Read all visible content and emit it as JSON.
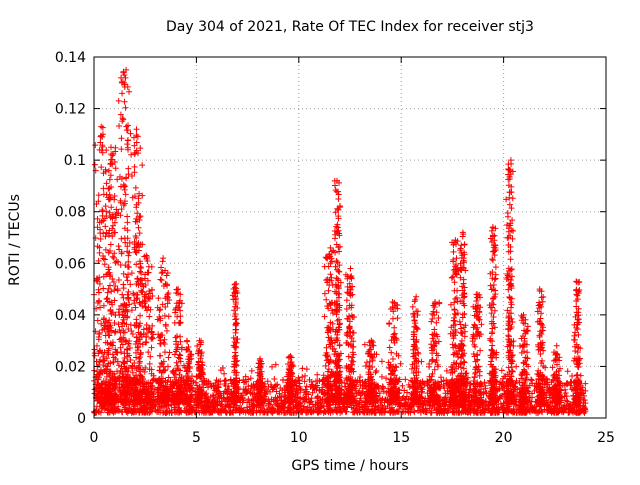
{
  "chart_data": {
    "type": "scatter",
    "title": "Day 304 of 2021, Rate Of TEC Index for receiver stj3",
    "xlabel": "GPS time / hours",
    "ylabel": "ROTI / TECUs",
    "xlim": [
      0,
      25
    ],
    "ylim": [
      0,
      0.14
    ],
    "x_ticks": [
      0,
      5,
      10,
      15,
      20,
      25
    ],
    "x_tick_labels": [
      "0",
      "5",
      "10",
      "15",
      "20",
      "25"
    ],
    "y_ticks": [
      0,
      0.02,
      0.04,
      0.06,
      0.08,
      0.1,
      0.12,
      0.14
    ],
    "y_tick_labels": [
      "0",
      "0.02",
      "0.04",
      "0.06",
      "0.08",
      "0.1",
      "0.12",
      "0.14"
    ],
    "grid": true,
    "marker": "+",
    "series_color": "#ff0000",
    "x_span_hours": [
      0,
      24
    ],
    "baseline_band": [
      0.002,
      0.015
    ],
    "activity_clusters": [
      {
        "center": 0.4,
        "width": 0.5,
        "peak": 0.113
      },
      {
        "center": 0.9,
        "width": 0.4,
        "peak": 0.105
      },
      {
        "center": 1.5,
        "width": 0.35,
        "peak": 0.135
      },
      {
        "center": 2.1,
        "width": 0.3,
        "peak": 0.112
      },
      {
        "center": 2.6,
        "width": 0.4,
        "peak": 0.063
      },
      {
        "center": 3.4,
        "width": 0.35,
        "peak": 0.062
      },
      {
        "center": 4.1,
        "width": 0.3,
        "peak": 0.05
      },
      {
        "center": 4.6,
        "width": 0.25,
        "peak": 0.03
      },
      {
        "center": 5.2,
        "width": 0.2,
        "peak": 0.03
      },
      {
        "center": 6.9,
        "width": 0.12,
        "peak": 0.052
      },
      {
        "center": 8.1,
        "width": 0.15,
        "peak": 0.023
      },
      {
        "center": 9.6,
        "width": 0.15,
        "peak": 0.024
      },
      {
        "center": 11.5,
        "width": 0.3,
        "peak": 0.066
      },
      {
        "center": 11.9,
        "width": 0.2,
        "peak": 0.092
      },
      {
        "center": 12.5,
        "width": 0.25,
        "peak": 0.058
      },
      {
        "center": 13.5,
        "width": 0.3,
        "peak": 0.03
      },
      {
        "center": 14.6,
        "width": 0.3,
        "peak": 0.045
      },
      {
        "center": 15.7,
        "width": 0.2,
        "peak": 0.047
      },
      {
        "center": 16.6,
        "width": 0.3,
        "peak": 0.045
      },
      {
        "center": 17.6,
        "width": 0.25,
        "peak": 0.069
      },
      {
        "center": 18.0,
        "width": 0.2,
        "peak": 0.072
      },
      {
        "center": 18.7,
        "width": 0.25,
        "peak": 0.048
      },
      {
        "center": 19.5,
        "width": 0.2,
        "peak": 0.074
      },
      {
        "center": 20.3,
        "width": 0.2,
        "peak": 0.1
      },
      {
        "center": 21.0,
        "width": 0.25,
        "peak": 0.04
      },
      {
        "center": 21.8,
        "width": 0.2,
        "peak": 0.05
      },
      {
        "center": 22.6,
        "width": 0.25,
        "peak": 0.028
      },
      {
        "center": 23.6,
        "width": 0.2,
        "peak": 0.053
      }
    ]
  }
}
